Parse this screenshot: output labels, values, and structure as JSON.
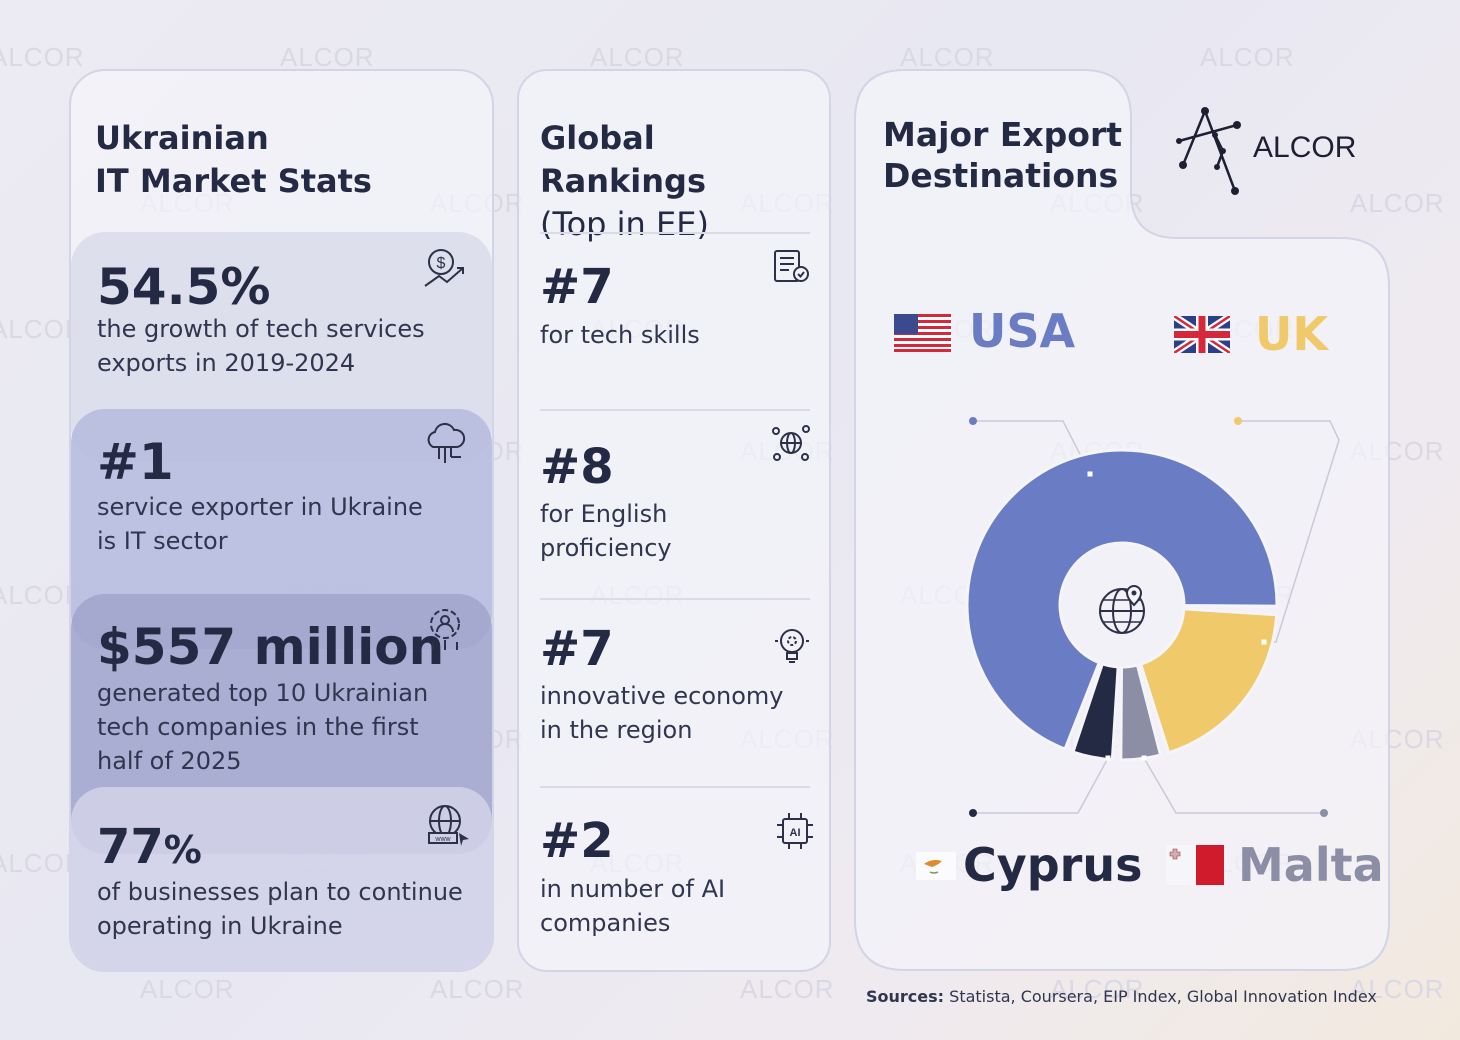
{
  "watermark": "ALCOR",
  "logo": {
    "text": "ALCOR"
  },
  "stats": {
    "title_line1": "Ukrainian",
    "title_line2": "IT Market Stats",
    "items": [
      {
        "value": "54.5%",
        "line1": "the growth of tech services",
        "line2": "exports in 2019-2024",
        "line3": "",
        "icon": "dollar-growth-icon"
      },
      {
        "value": "#1",
        "line1": "service exporter in Ukraine",
        "line2": "is IT sector",
        "line3": "",
        "icon": "cloud-circuit-icon"
      },
      {
        "value": "$557 million",
        "line1": "generated top 10 Ukrainian",
        "line2": "tech companies in the first",
        "line3": "half of 2025",
        "icon": "gear-person-icon"
      },
      {
        "value_num": "77",
        "value_unit": "%",
        "line1": "of businesses plan to continue",
        "line2": "operating in Ukraine",
        "line3": "",
        "icon": "www-globe-icon"
      }
    ]
  },
  "rankings": {
    "title_bold": "Global Rankings",
    "title_light": "(Top in EE)",
    "items": [
      {
        "rank": "#7",
        "line1": "for tech skills",
        "line2": "",
        "icon": "certificate-document-icon"
      },
      {
        "rank": "#8",
        "line1": "for English",
        "line2": "proficiency",
        "icon": "globe-network-icon"
      },
      {
        "rank": "#7",
        "line1": "innovative economy",
        "line2": "in the region",
        "icon": "lightbulb-gear-icon"
      },
      {
        "rank": "#2",
        "line1": "in number of AI",
        "line2": "companies",
        "icon": "ai-chip-icon"
      }
    ]
  },
  "exports": {
    "title_line1": "Major Export",
    "title_line2": "Destinations",
    "countries": [
      {
        "name": "USA",
        "color": "#6a7cc4"
      },
      {
        "name": "UK",
        "color": "#f0c96a"
      },
      {
        "name": "Cyprus",
        "color": "#242a44"
      },
      {
        "name": "Malta",
        "color": "#8c8ea6"
      }
    ]
  },
  "chart_data": {
    "type": "pie",
    "style": "donut",
    "labels": [
      "USA",
      "UK",
      "Cyprus",
      "Malta"
    ],
    "values": [
      70,
      20,
      5,
      5
    ],
    "colors": [
      "#6a7cc4",
      "#f0c96a",
      "#242a44",
      "#8c8ea6"
    ],
    "title": "Major Export Destinations",
    "center_icon": "globe-pin-icon"
  },
  "sources": {
    "label": "Sources:",
    "text": "Statista, Coursera, EIP Index, Global Innovation Index"
  }
}
